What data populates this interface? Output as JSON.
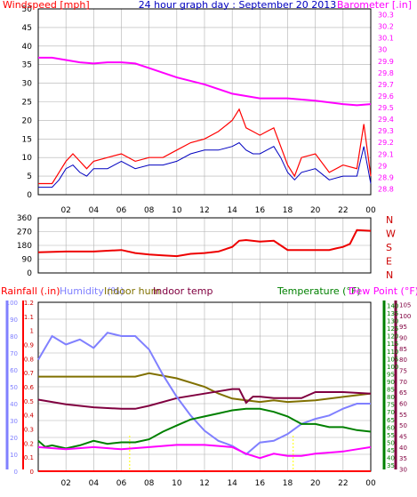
{
  "colors": {
    "wind": "#ff0000",
    "gust": "#0000c0",
    "baro": "#ff00ff",
    "dir": "#ee0000",
    "humidity": "#8080ff",
    "indoor_hum": "#807000",
    "indoor_temp": "#800040",
    "temperature": "#008000",
    "dewpoint": "#ff00ff",
    "rain": "#ff0000",
    "grid": "#b0b0b0",
    "axis_text": "#000000"
  },
  "chart_data": [
    {
      "type": "line",
      "title": "24 hour graph day : September 20 2013",
      "left_label": "Windspeed [mph]",
      "right_label": "Barometer [.in]",
      "x_ticks": [
        "02",
        "04",
        "06",
        "08",
        "10",
        "12",
        "14",
        "16",
        "18",
        "20",
        "22",
        "00"
      ],
      "x_range": [
        0,
        24
      ],
      "left_ticks": [
        "0",
        "5",
        "10",
        "15",
        "20",
        "25",
        "30",
        "35",
        "40",
        "45",
        "50"
      ],
      "ylim_left": [
        0,
        50
      ],
      "right_ticks": [
        "28.8",
        "28.9",
        "29",
        "29.1",
        "29.2",
        "29.3",
        "29.4",
        "29.5",
        "29.6",
        "29.7",
        "29.8",
        "29.9",
        "30",
        "30.1",
        "30.2",
        "30.3"
      ],
      "ylim_right": [
        28.75,
        30.35
      ],
      "series": [
        {
          "key": "wind",
          "axis": "left",
          "x": [
            0,
            1,
            1.5,
            2,
            2.5,
            3,
            3.5,
            4,
            5,
            6,
            7,
            8,
            9,
            10,
            11,
            12,
            13,
            14,
            14.5,
            15,
            15.5,
            16,
            16.5,
            17,
            17.5,
            18,
            18.5,
            19,
            20,
            21,
            22,
            23,
            23.5,
            24
          ],
          "y": [
            3,
            3,
            6,
            9,
            11,
            9,
            7,
            9,
            10,
            11,
            9,
            10,
            10,
            12,
            14,
            15,
            17,
            20,
            23,
            18,
            17,
            16,
            17,
            18,
            13,
            8,
            5,
            10,
            11,
            6,
            8,
            7,
            19,
            5
          ]
        },
        {
          "key": "gust",
          "axis": "left",
          "x": [
            0,
            1,
            1.5,
            2,
            2.5,
            3,
            3.5,
            4,
            5,
            6,
            7,
            8,
            9,
            10,
            11,
            12,
            13,
            14,
            14.5,
            15,
            15.5,
            16,
            16.5,
            17,
            17.5,
            18,
            18.5,
            19,
            20,
            21,
            22,
            23,
            23.5,
            24
          ],
          "y": [
            2,
            2,
            4,
            7,
            8,
            6,
            5,
            7,
            7,
            9,
            7,
            8,
            8,
            9,
            11,
            12,
            12,
            13,
            14,
            12,
            11,
            11,
            12,
            13,
            10,
            6,
            4,
            6,
            7,
            4,
            5,
            5,
            13,
            3
          ]
        },
        {
          "key": "baro",
          "axis": "right",
          "x": [
            0,
            1,
            2,
            3,
            4,
            5,
            6,
            7,
            8,
            10,
            12,
            14,
            16,
            18,
            20,
            22,
            23,
            24
          ],
          "y": [
            29.93,
            29.93,
            29.91,
            29.89,
            29.88,
            29.89,
            29.89,
            29.88,
            29.84,
            29.76,
            29.7,
            29.62,
            29.58,
            29.58,
            29.56,
            29.53,
            29.52,
            29.53
          ]
        }
      ]
    },
    {
      "type": "line",
      "right_labels": [
        "N",
        "W",
        "S",
        "E",
        "N"
      ],
      "left_ticks": [
        "0",
        "90",
        "180",
        "270",
        "360"
      ],
      "ylim": [
        0,
        360
      ],
      "x_range": [
        0,
        24
      ],
      "series": [
        {
          "key": "dir",
          "x": [
            0,
            2,
            4,
            6,
            7,
            8,
            9,
            10,
            11,
            12,
            13,
            14,
            14.5,
            15,
            16,
            17,
            17.5,
            18,
            19,
            20,
            21,
            21.5,
            22,
            22.5,
            23,
            24
          ],
          "y": [
            135,
            140,
            140,
            150,
            130,
            120,
            115,
            110,
            125,
            130,
            140,
            170,
            210,
            215,
            205,
            210,
            180,
            150,
            150,
            150,
            150,
            160,
            170,
            190,
            280,
            275
          ]
        }
      ]
    },
    {
      "type": "line",
      "labels": {
        "rainfall": "Rainfall (.in)",
        "humidity": "Humidity (%)",
        "indoor_hum": "Indoor hum",
        "indoor_temp": "Indoor temp",
        "temperature": "Temperature (°F)",
        "dewpoint": "Dew Point (°F)"
      },
      "x_ticks": [
        "02",
        "04",
        "06",
        "08",
        "10",
        "12",
        "14",
        "16",
        "18",
        "20",
        "22",
        "00"
      ],
      "x_range": [
        0,
        24
      ],
      "humidity_ticks": [
        "0",
        "10",
        "20",
        "30",
        "40",
        "50",
        "60",
        "70",
        "80",
        "90",
        "100"
      ],
      "humidity_range": [
        0,
        100
      ],
      "rain_ticks": [
        "0",
        "0.1",
        "0.2",
        "0.3",
        "0.4",
        "0.5",
        "0.6",
        "0.7",
        "0.8",
        "0.9",
        "1",
        "1.1",
        "1.2"
      ],
      "rain_range": [
        0,
        1.2
      ],
      "temp_ticks": [
        "35",
        "40",
        "45",
        "50",
        "55",
        "60",
        "65",
        "70",
        "75",
        "80",
        "85",
        "90",
        "95",
        "100",
        "105",
        "110",
        "115",
        "120",
        "125",
        "130",
        "135",
        "140"
      ],
      "temp_range": [
        31,
        142
      ],
      "dew_ticks": [
        "30",
        "35",
        "40",
        "45",
        "50",
        "55",
        "60",
        "65",
        "70",
        "75",
        "80",
        "85",
        "90",
        "95",
        "100",
        "105"
      ],
      "dew_range": [
        29,
        106
      ],
      "series": [
        {
          "key": "humidity",
          "axis": "humidity",
          "x": [
            0,
            0.5,
            1,
            2,
            3,
            4,
            5,
            6,
            7,
            8,
            9,
            10,
            11,
            12,
            13,
            14,
            15,
            16,
            17,
            18,
            19,
            20,
            21,
            22,
            23,
            24
          ],
          "y": [
            66,
            73,
            80,
            75,
            78,
            73,
            82,
            80,
            80,
            72,
            57,
            44,
            33,
            24,
            18,
            15,
            10,
            17,
            18,
            22,
            28,
            31,
            33,
            37,
            40,
            40
          ]
        },
        {
          "key": "indoor_hum",
          "axis": "humidity",
          "x": [
            0,
            2,
            4,
            6,
            7,
            8,
            10,
            12,
            13,
            14,
            15,
            16,
            17,
            18,
            20,
            22,
            24
          ],
          "y": [
            56,
            56,
            56,
            56,
            56,
            58,
            55,
            50,
            46,
            43,
            42,
            41,
            42,
            41,
            42,
            44,
            46
          ]
        },
        {
          "key": "indoor_temp",
          "axis": "temp",
          "x": [
            0,
            2,
            4,
            6,
            7,
            8,
            10,
            12,
            14,
            14.5,
            15,
            15.5,
            16,
            17,
            18,
            19,
            20,
            22,
            24
          ],
          "y": [
            78,
            75,
            73,
            72,
            72,
            74,
            79,
            82,
            85,
            85,
            76,
            80,
            80,
            79,
            79,
            79,
            83,
            83,
            82
          ]
        },
        {
          "key": "temperature",
          "axis": "temp",
          "x": [
            0,
            0.5,
            1,
            2,
            3,
            4,
            5,
            6,
            7,
            8,
            9,
            10,
            11,
            12,
            13,
            14,
            15,
            16,
            17,
            18,
            19,
            20,
            21,
            22,
            23,
            24
          ],
          "y": [
            51,
            47,
            48,
            46,
            48,
            51,
            49,
            50,
            50,
            52,
            57,
            61,
            65,
            67,
            69,
            71,
            72,
            72,
            70,
            67,
            62,
            62,
            60,
            60,
            58,
            57
          ]
        },
        {
          "key": "dewpoint",
          "axis": "dew",
          "x": [
            0,
            2,
            4,
            6,
            8,
            10,
            12,
            14,
            15,
            16,
            17,
            18,
            19,
            20,
            22,
            23,
            24
          ],
          "y": [
            40,
            39,
            40,
            39,
            40,
            41,
            41,
            40,
            37,
            35,
            37,
            36,
            36,
            37,
            38,
            39,
            40
          ]
        },
        {
          "key": "rain",
          "axis": "rain",
          "x": [
            0,
            24
          ],
          "y": [
            0,
            0
          ]
        }
      ],
      "annotation_hours": [
        6.6,
        18.4
      ]
    }
  ]
}
